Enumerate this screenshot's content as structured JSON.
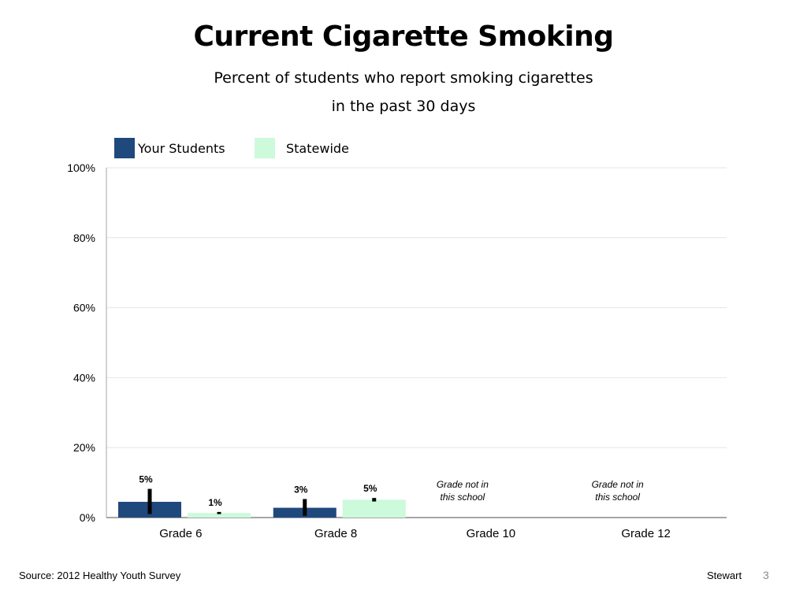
{
  "slide": {
    "source": "Source: 2012 Healthy Youth Survey",
    "author": "Stewart",
    "page_number": "3"
  },
  "chart_data": {
    "type": "bar",
    "title": "Current Cigarette Smoking",
    "subtitle_lines": [
      "Percent of students who report smoking cigarettes",
      "in the past 30 days"
    ],
    "categories": [
      "Grade 6",
      "Grade 8",
      "Grade 10",
      "Grade 12"
    ],
    "series": [
      {
        "name": "Your Students",
        "color": "#1f497d",
        "values": [
          4.5,
          2.8,
          null,
          null
        ],
        "labels": [
          "5%",
          "3%",
          null,
          null
        ],
        "error": [
          [
            1.0,
            8.2
          ],
          [
            0.5,
            5.3
          ],
          null,
          null
        ]
      },
      {
        "name": "Statewide",
        "color": "#ccfadb",
        "values": [
          1.3,
          5.1,
          null,
          null
        ],
        "labels": [
          "1%",
          "5%",
          null,
          null
        ],
        "error": [
          [
            1.0,
            1.6
          ],
          [
            4.6,
            5.6
          ],
          null,
          null
        ]
      }
    ],
    "category_notes": [
      null,
      null,
      "Grade not in this school",
      "Grade not in this school"
    ],
    "note_lines": [
      "Grade not in",
      "this school"
    ],
    "yticks": [
      "0%",
      "20%",
      "40%",
      "60%",
      "80%",
      "100%"
    ],
    "ylim": [
      0,
      100
    ],
    "grid": true,
    "legend": "top-left"
  }
}
